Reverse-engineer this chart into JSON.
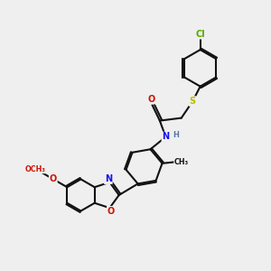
{
  "bg": "#efefef",
  "bc": "#111111",
  "lw": 1.5,
  "dbl_off": 0.055,
  "colors": {
    "N": "#1111ee",
    "O": "#cc1100",
    "S": "#bbbb00",
    "Cl": "#55aa00",
    "C": "#111111",
    "H": "#5577aa"
  },
  "fs": 7.0,
  "fsg": 5.8,
  "figsize": [
    3.0,
    3.0
  ],
  "dpi": 100
}
